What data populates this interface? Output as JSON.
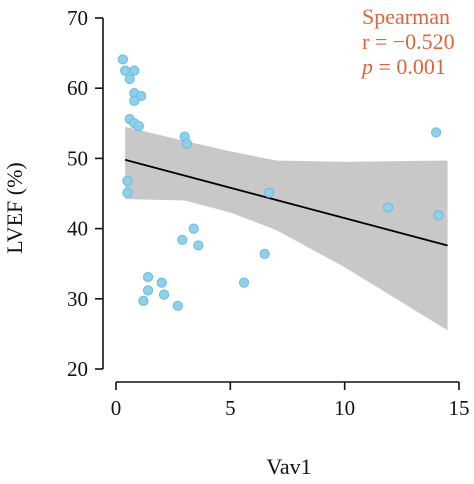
{
  "chart_data": {
    "type": "scatter",
    "xlabel": "Vav1",
    "ylabel": "LVEF (%)",
    "xlim": [
      0,
      15
    ],
    "ylim": [
      20,
      70
    ],
    "x_ticks": [
      0,
      5,
      10,
      15
    ],
    "y_ticks": [
      20,
      30,
      40,
      50,
      60,
      70
    ],
    "grid": false,
    "points": [
      {
        "x": 0.3,
        "y": 64.1
      },
      {
        "x": 0.4,
        "y": 62.5
      },
      {
        "x": 0.8,
        "y": 62.5
      },
      {
        "x": 0.6,
        "y": 61.3
      },
      {
        "x": 0.8,
        "y": 59.3
      },
      {
        "x": 1.1,
        "y": 58.9
      },
      {
        "x": 0.8,
        "y": 58.2
      },
      {
        "x": 0.6,
        "y": 55.6
      },
      {
        "x": 0.8,
        "y": 55.0
      },
      {
        "x": 1.0,
        "y": 54.6
      },
      {
        "x": 3.0,
        "y": 53.1
      },
      {
        "x": 3.1,
        "y": 52.1
      },
      {
        "x": 14.0,
        "y": 53.7
      },
      {
        "x": 0.5,
        "y": 46.8
      },
      {
        "x": 0.5,
        "y": 45.1
      },
      {
        "x": 6.7,
        "y": 45.1
      },
      {
        "x": 11.9,
        "y": 43.0
      },
      {
        "x": 14.1,
        "y": 41.9
      },
      {
        "x": 3.4,
        "y": 40.0
      },
      {
        "x": 2.9,
        "y": 38.4
      },
      {
        "x": 3.6,
        "y": 37.6
      },
      {
        "x": 6.5,
        "y": 36.4
      },
      {
        "x": 1.4,
        "y": 33.1
      },
      {
        "x": 2.0,
        "y": 32.3
      },
      {
        "x": 5.6,
        "y": 32.3
      },
      {
        "x": 1.4,
        "y": 31.2
      },
      {
        "x": 2.1,
        "y": 30.6
      },
      {
        "x": 1.2,
        "y": 29.7
      },
      {
        "x": 2.7,
        "y": 29.0
      }
    ],
    "point_color": "#8fd0ea",
    "point_edge_color": "#6bbbdc",
    "fit_line": {
      "x": [
        0.4,
        14.5
      ],
      "y": [
        49.8,
        37.6
      ]
    },
    "confidence_band": {
      "x": [
        0.4,
        3,
        5,
        7,
        10,
        14.5
      ],
      "upper": [
        54.5,
        52.5,
        51.0,
        49.7,
        49.5,
        49.7
      ],
      "lower": [
        44.2,
        44.0,
        42.3,
        39.8,
        34.5,
        25.5
      ]
    },
    "band_color": "#c8c8c8",
    "line_color": "#000000",
    "annotation": {
      "method": "Spearman",
      "r_text": "r = −0.520",
      "p_symbol": "p",
      "p_rest": " = 0.001",
      "color": "#e0643a"
    }
  }
}
